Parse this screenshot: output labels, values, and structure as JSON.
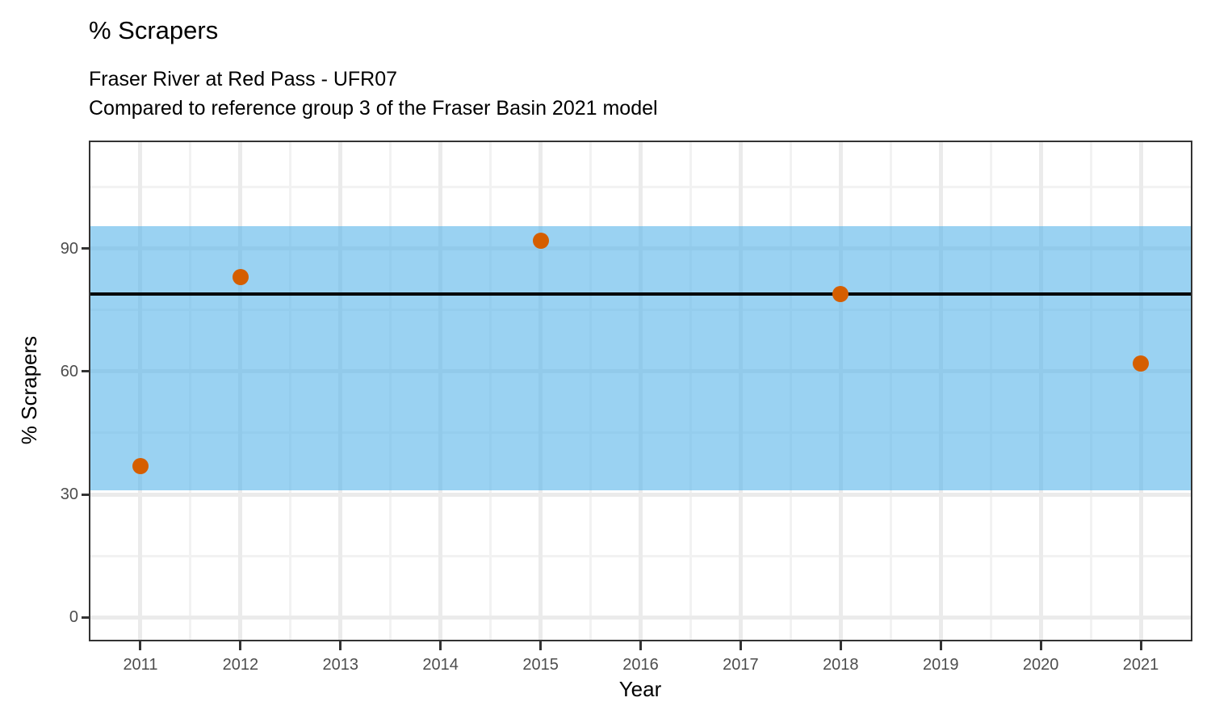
{
  "chart_data": {
    "type": "scatter",
    "title": "% Scrapers",
    "subtitle": [
      "Fraser River at Red Pass - UFR07",
      "Compared to reference group 3 of the Fraser Basin 2021 model"
    ],
    "xlabel": "Year",
    "ylabel": "% Scrapers",
    "x_domain": [
      2010.5,
      2021.5
    ],
    "y_domain": [
      -5.5,
      116
    ],
    "x_ticks": [
      2011,
      2012,
      2013,
      2014,
      2015,
      2016,
      2017,
      2018,
      2019,
      2020,
      2021
    ],
    "x_minor_gridlines": [
      2011.5,
      2012.5,
      2013.5,
      2014.5,
      2015.5,
      2016.5,
      2017.5,
      2018.5,
      2019.5,
      2020.5
    ],
    "y_ticks": [
      0,
      30,
      60,
      90
    ],
    "y_minor_gridlines": [
      15,
      45,
      75,
      105
    ],
    "grid": true,
    "legend": "none",
    "points": [
      {
        "x": 2011,
        "y": 37
      },
      {
        "x": 2012,
        "y": 83
      },
      {
        "x": 2015,
        "y": 92
      },
      {
        "x": 2018,
        "y": 79
      },
      {
        "x": 2021,
        "y": 62
      }
    ],
    "reference_line": 79,
    "reference_band": {
      "lower": 31,
      "upper": 95.5
    },
    "colors": {
      "point": "#D55E00",
      "band": "#56B4E9",
      "band_opacity": 0.6,
      "reference_line": "#000000",
      "grid_major": "#EBEBEB",
      "grid_minor": "#F2F2F2",
      "axis_text": "#4D4D4D",
      "panel_border": "#333333"
    }
  }
}
